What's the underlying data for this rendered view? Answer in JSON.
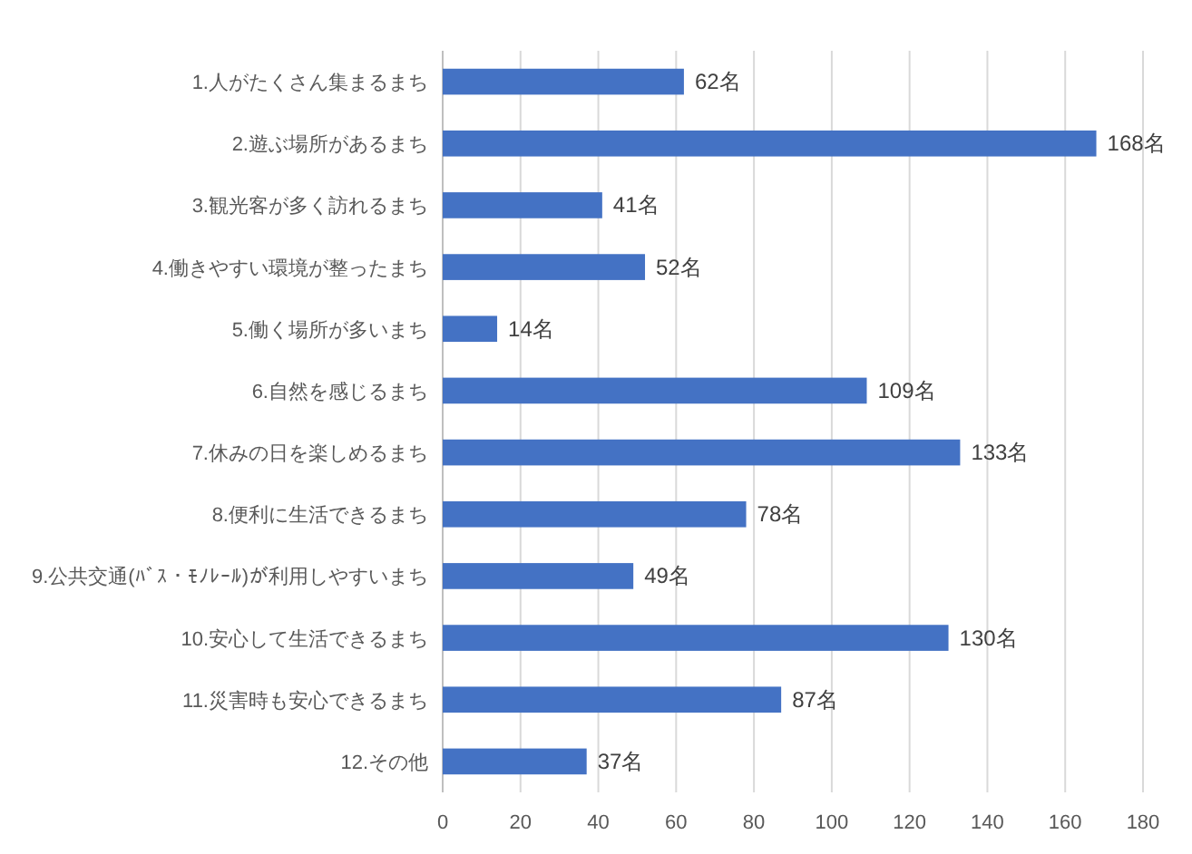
{
  "chart_data": {
    "type": "bar",
    "orientation": "horizontal",
    "categories": [
      "1.人がたくさん集まるまち",
      "2.遊ぶ場所があるまち",
      "3.観光客が多く訪れるまち",
      "4.働きやすい環境が整ったまち",
      "5.働く場所が多いまち",
      "6.自然を感じるまち",
      "7.休みの日を楽しめるまち",
      "8.便利に生活できるまち",
      "9.公共交通(ﾊﾞｽ・ﾓﾉﾚｰﾙ)が利用しやすいまち",
      "10.安心して生活できるまち",
      "11.災害時も安心できるまち",
      "12.その他"
    ],
    "values": [
      62,
      168,
      41,
      52,
      14,
      109,
      133,
      78,
      49,
      130,
      87,
      37
    ],
    "value_labels": [
      "62名",
      "168名",
      "41名",
      "52名",
      "14名",
      "109名",
      "133名",
      "78名",
      "49名",
      "130名",
      "87名",
      "37名"
    ],
    "color": "#4472c4",
    "xlim": [
      0,
      180
    ],
    "xticks": [
      0,
      20,
      40,
      60,
      80,
      100,
      120,
      140,
      160,
      180
    ],
    "grid": "x"
  }
}
